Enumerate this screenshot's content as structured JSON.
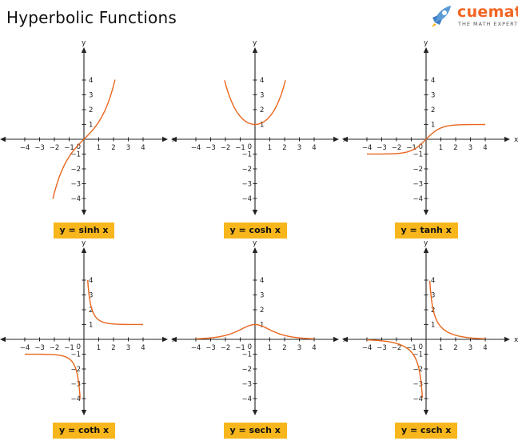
{
  "page": {
    "title": "Hyperbolic Functions"
  },
  "logo": {
    "word": "cuemath",
    "tagline": "THE MATH EXPERT",
    "color": "#f26522",
    "icon": "rocket-icon"
  },
  "colors": {
    "curve": "#e8661c",
    "axis": "#222222",
    "label_bg": "#f7b61b"
  },
  "chart_data": [
    {
      "type": "line",
      "function": "sinh",
      "label": "y = sinh x",
      "xlabel": "x",
      "ylabel": "y",
      "xlim": [
        -4.6,
        4.6
      ],
      "ylim": [
        -4.6,
        4.8
      ],
      "xticks": [
        -4,
        -3,
        -2,
        -1,
        1,
        2,
        3,
        4
      ],
      "yticks": [
        -4,
        -3,
        -2,
        -1,
        1,
        2,
        3,
        4
      ],
      "origin_label": "0",
      "series": [
        {
          "x": [
            -2.1,
            -1.5,
            -1,
            -0.5,
            0,
            0.5,
            1,
            1.5,
            2.1
          ],
          "y": [
            -4.02,
            -2.13,
            -1.18,
            -0.52,
            0,
            0.52,
            1.18,
            2.13,
            4.02
          ]
        }
      ]
    },
    {
      "type": "line",
      "function": "cosh",
      "label": "y = cosh x",
      "xlabel": "x",
      "ylabel": "y",
      "xlim": [
        -4.6,
        4.6
      ],
      "ylim": [
        -4.6,
        4.8
      ],
      "xticks": [
        -4,
        -3,
        -2,
        -1,
        1,
        2,
        3,
        4
      ],
      "yticks": [
        -4,
        -3,
        -2,
        -1,
        1,
        2,
        3,
        4
      ],
      "origin_label": "0",
      "series": [
        {
          "x": [
            -2.06,
            -1.5,
            -1,
            -0.5,
            0,
            0.5,
            1,
            1.5,
            2.06
          ],
          "y": [
            3.99,
            2.35,
            1.54,
            1.13,
            1,
            1.13,
            1.54,
            2.35,
            3.99
          ]
        }
      ]
    },
    {
      "type": "line",
      "function": "tanh",
      "label": "y = tanh x",
      "xlabel": "x",
      "ylabel": "y",
      "xlim": [
        -4.6,
        4.6
      ],
      "ylim": [
        -4.6,
        4.8
      ],
      "xticks": [
        -4,
        -3,
        -2,
        -1,
        1,
        2,
        3,
        4
      ],
      "yticks": [
        -4,
        -3,
        -2,
        -1,
        1,
        2,
        3,
        4
      ],
      "origin_label": "0",
      "series": [
        {
          "x": [
            -4,
            -3,
            -2,
            -1,
            -0.5,
            0,
            0.5,
            1,
            2,
            3,
            4
          ],
          "y": [
            -1,
            -0.99,
            -0.96,
            -0.76,
            -0.46,
            0,
            0.46,
            0.76,
            0.96,
            0.99,
            1
          ]
        }
      ]
    },
    {
      "type": "line",
      "function": "coth",
      "label": "y = coth x",
      "xlabel": "x",
      "ylabel": "y",
      "xlim": [
        -4.6,
        4.6
      ],
      "ylim": [
        -4.6,
        4.8
      ],
      "xticks": [
        -4,
        -3,
        -2,
        -1,
        1,
        2,
        3,
        4
      ],
      "yticks": [
        -4,
        -3,
        -2,
        -1,
        1,
        2,
        3,
        4
      ],
      "origin_label": "0",
      "series": [
        {
          "x": [
            -4,
            -3,
            -2,
            -1.5,
            -1,
            -0.7,
            -0.5,
            -0.35,
            -0.255
          ],
          "y": [
            -1,
            -1.01,
            -1.04,
            -1.1,
            -1.31,
            -1.65,
            -2.16,
            -2.97,
            -4
          ]
        },
        {
          "x": [
            0.255,
            0.35,
            0.5,
            0.7,
            1,
            1.5,
            2,
            3,
            4
          ],
          "y": [
            4,
            2.97,
            2.16,
            1.65,
            1.31,
            1.1,
            1.04,
            1.01,
            1
          ]
        }
      ]
    },
    {
      "type": "line",
      "function": "sech",
      "label": "y = sech x",
      "xlabel": "x",
      "ylabel": "y",
      "xlim": [
        -4.6,
        4.6
      ],
      "ylim": [
        -4.6,
        4.8
      ],
      "xticks": [
        -4,
        -3,
        -2,
        -1,
        1,
        2,
        3,
        4
      ],
      "yticks": [
        -4,
        -3,
        -2,
        -1,
        1,
        2,
        3,
        4
      ],
      "origin_label": "0",
      "series": [
        {
          "x": [
            -4,
            -3,
            -2,
            -1.5,
            -1,
            -0.5,
            0,
            0.5,
            1,
            1.5,
            2,
            3,
            4
          ],
          "y": [
            0.04,
            0.1,
            0.27,
            0.43,
            0.65,
            0.89,
            1,
            0.89,
            0.65,
            0.43,
            0.27,
            0.1,
            0.04
          ]
        }
      ]
    },
    {
      "type": "line",
      "function": "csch",
      "label": "y = csch x",
      "xlabel": "x",
      "ylabel": "y",
      "xlim": [
        -4.6,
        4.6
      ],
      "ylim": [
        -4.6,
        4.8
      ],
      "xticks": [
        -4,
        -3,
        -2,
        -1,
        1,
        2,
        3,
        4
      ],
      "yticks": [
        -4,
        -3,
        -2,
        -1,
        1,
        2,
        3,
        4
      ],
      "origin_label": "0",
      "series": [
        {
          "x": [
            -4,
            -3,
            -2,
            -1.5,
            -1,
            -0.7,
            -0.5,
            -0.35,
            -0.25
          ],
          "y": [
            -0.04,
            -0.1,
            -0.28,
            -0.47,
            -0.85,
            -1.32,
            -1.92,
            -2.8,
            -4
          ]
        },
        {
          "x": [
            0.25,
            0.35,
            0.5,
            0.7,
            1,
            1.5,
            2,
            3,
            4
          ],
          "y": [
            4,
            2.8,
            1.92,
            1.32,
            0.85,
            0.47,
            0.28,
            0.1,
            0.04
          ]
        }
      ]
    }
  ]
}
